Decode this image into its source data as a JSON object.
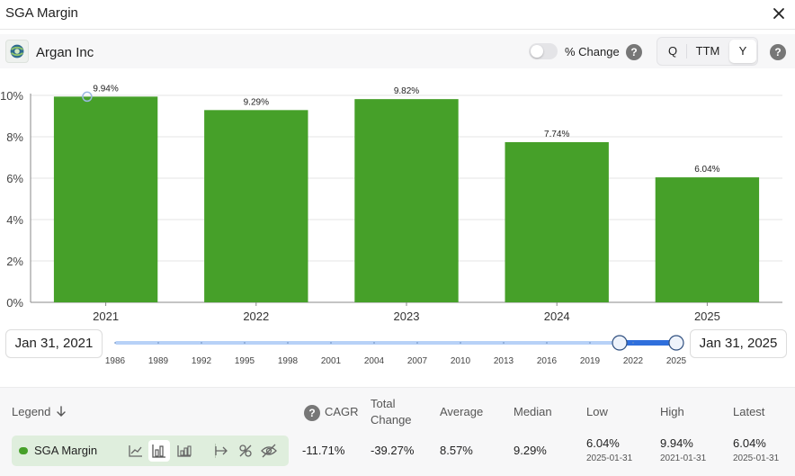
{
  "window": {
    "title": "SGA Margin"
  },
  "company": {
    "name": "Argan Inc"
  },
  "controls": {
    "pct_change_label": "% Change",
    "periods": [
      "Q",
      "TTM",
      "Y"
    ],
    "active_period": "Y"
  },
  "colors": {
    "bar": "#46a029",
    "slider_active": "#2f6fdc",
    "slider_track": "#b7d1f7"
  },
  "range": {
    "start_label": "Jan 31, 2021",
    "end_label": "Jan 31, 2025",
    "timeline_years": [
      "1986",
      "1989",
      "1992",
      "1995",
      "1998",
      "2001",
      "2004",
      "2007",
      "2010",
      "2013",
      "2016",
      "2019",
      "2022",
      "2025"
    ]
  },
  "chart_data": {
    "type": "bar",
    "categories": [
      "2021",
      "2022",
      "2023",
      "2024",
      "2025"
    ],
    "values": [
      9.94,
      9.29,
      9.82,
      7.74,
      6.04
    ],
    "value_labels": [
      "9.94%",
      "9.29%",
      "9.82%",
      "7.74%",
      "6.04%"
    ],
    "series": [
      {
        "name": "SGA Margin",
        "values": [
          9.94,
          9.29,
          9.82,
          7.74,
          6.04
        ]
      }
    ],
    "ylim": [
      0,
      10
    ],
    "yticks": [
      "0%",
      "2%",
      "4%",
      "6%",
      "8%",
      "10%"
    ],
    "grid": true
  },
  "stats": {
    "headers": {
      "legend": "Legend",
      "cagr": "CAGR",
      "total_change_1": "Total",
      "total_change_2": "Change",
      "average": "Average",
      "median": "Median",
      "low": "Low",
      "high": "High",
      "latest": "Latest"
    },
    "row": {
      "name": "SGA Margin",
      "cagr": "-11.71%",
      "total_change": "-39.27%",
      "average": "8.57%",
      "median": "9.29%",
      "low": "6.04%",
      "low_date": "2025-01-31",
      "high": "9.94%",
      "high_date": "2021-01-31",
      "latest": "6.04%",
      "latest_date": "2025-01-31"
    }
  }
}
